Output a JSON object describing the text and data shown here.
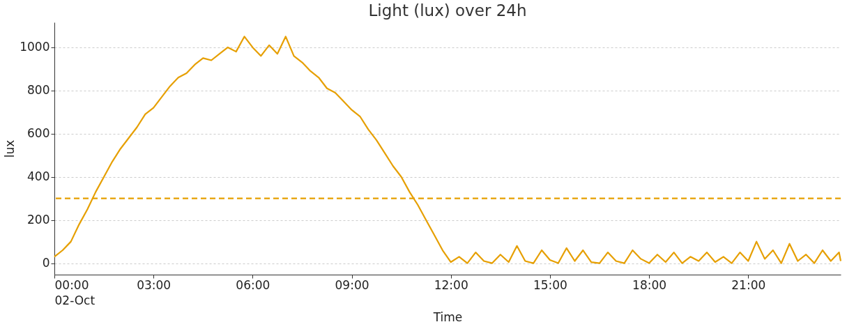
{
  "chart_data": {
    "type": "line",
    "title": "Light (lux) over 24h",
    "xlabel": "Time",
    "ylabel": "lux",
    "x": [
      0,
      0.25,
      0.5,
      0.75,
      1.0,
      1.25,
      1.5,
      1.75,
      2.0,
      2.25,
      2.5,
      2.75,
      3.0,
      3.25,
      3.5,
      3.75,
      4.0,
      4.25,
      4.5,
      4.75,
      5.0,
      5.25,
      5.5,
      5.75,
      6.0,
      6.25,
      6.5,
      6.75,
      7.0,
      7.25,
      7.5,
      7.75,
      8.0,
      8.25,
      8.5,
      8.75,
      9.0,
      9.25,
      9.5,
      9.75,
      10.0,
      10.25,
      10.5,
      10.75,
      11.0,
      11.25,
      11.5,
      11.75,
      12.0,
      12.25,
      12.5,
      12.75,
      13.0,
      13.25,
      13.5,
      13.75,
      14.0,
      14.25,
      14.5,
      14.75,
      15.0,
      15.25,
      15.5,
      15.75,
      16.0,
      16.25,
      16.5,
      16.75,
      17.0,
      17.25,
      17.5,
      17.75,
      18.0,
      18.25,
      18.5,
      18.75,
      19.0,
      19.25,
      19.5,
      19.75,
      20.0,
      20.25,
      20.5,
      20.75,
      21.0,
      21.25,
      21.5,
      21.75,
      22.0,
      22.25,
      22.5,
      22.75,
      23.0,
      23.25,
      23.5,
      23.75,
      23.8
    ],
    "series": [
      {
        "color": "#e69f00",
        "values": [
          30,
          60,
          100,
          180,
          250,
          330,
          400,
          470,
          530,
          580,
          630,
          690,
          720,
          770,
          820,
          860,
          880,
          920,
          950,
          940,
          970,
          1000,
          980,
          1050,
          1000,
          960,
          1010,
          970,
          1050,
          960,
          930,
          890,
          860,
          810,
          790,
          750,
          710,
          680,
          620,
          570,
          510,
          450,
          400,
          330,
          270,
          200,
          130,
          60,
          5,
          30,
          0,
          50,
          10,
          0,
          40,
          5,
          80,
          10,
          0,
          60,
          15,
          0,
          70,
          10,
          60,
          5,
          0,
          50,
          10,
          0,
          60,
          20,
          0,
          40,
          5,
          50,
          0,
          30,
          10,
          50,
          5,
          30,
          0,
          50,
          10,
          100,
          20,
          60,
          0,
          90,
          10,
          40,
          0,
          60,
          10,
          50,
          10
        ]
      }
    ],
    "xlim": [
      0,
      23.8
    ],
    "xticks": [
      {
        "value": 0,
        "label": "00:00\n02-Oct"
      },
      {
        "value": 3,
        "label": "03:00"
      },
      {
        "value": 6,
        "label": "06:00"
      },
      {
        "value": 9,
        "label": "09:00"
      },
      {
        "value": 12,
        "label": "12:00"
      },
      {
        "value": 15,
        "label": "15:00"
      },
      {
        "value": 18,
        "label": "18:00"
      },
      {
        "value": 21,
        "label": "21:00"
      }
    ],
    "ylim": [
      -53,
      1116
    ],
    "yticks": [
      0,
      200,
      400,
      600,
      800,
      1000
    ],
    "ref_lines": [
      {
        "axis": "y",
        "value": 300,
        "color": "#e69f00",
        "line_style": "dashed"
      }
    ],
    "grid": "y",
    "line_style": "solid",
    "marker": "none"
  }
}
